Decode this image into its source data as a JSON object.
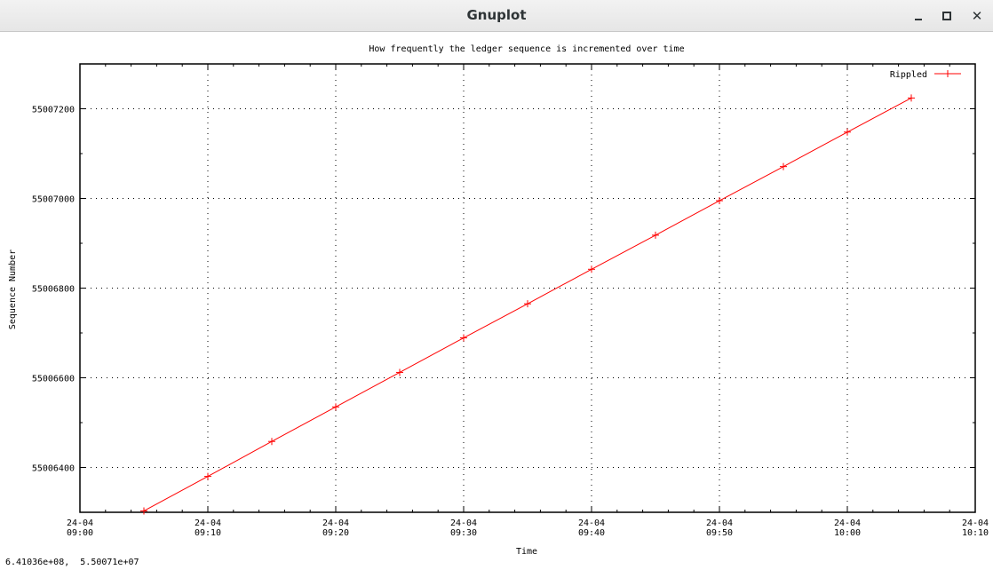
{
  "window": {
    "title": "Gnuplot"
  },
  "status_readout": "6.41036e+08,  5.50071e+07",
  "chart_data": {
    "type": "line",
    "title": "How frequently the ledger sequence is incremented over time",
    "xlabel": "Time",
    "ylabel": "Sequence Number",
    "x_axis_kind": "time",
    "x_ticks": [
      [
        "24-04",
        "09:00"
      ],
      [
        "24-04",
        "09:10"
      ],
      [
        "24-04",
        "09:20"
      ],
      [
        "24-04",
        "09:30"
      ],
      [
        "24-04",
        "09:40"
      ],
      [
        "24-04",
        "09:50"
      ],
      [
        "24-04",
        "10:00"
      ],
      [
        "24-04",
        "10:10"
      ]
    ],
    "x_tick_minutes": [
      0,
      10,
      20,
      30,
      40,
      50,
      60,
      70
    ],
    "xlim_minutes": [
      0,
      70
    ],
    "y_ticks": [
      55006400,
      55006600,
      55006800,
      55007000,
      55007200
    ],
    "ylim": [
      55006300,
      55007300
    ],
    "grid": true,
    "legend_position": "top-right",
    "color": "#ff0000",
    "series": [
      {
        "name": "Rippled",
        "x_minutes": [
          5,
          10,
          15,
          20,
          25,
          30,
          35,
          40,
          45,
          50,
          55,
          60,
          65
        ],
        "values": [
          55006303,
          55006380,
          55006458,
          55006535,
          55006612,
          55006689,
          55006765,
          55006842,
          55006918,
          55006995,
          55007071,
          55007148,
          55007224
        ]
      }
    ]
  }
}
